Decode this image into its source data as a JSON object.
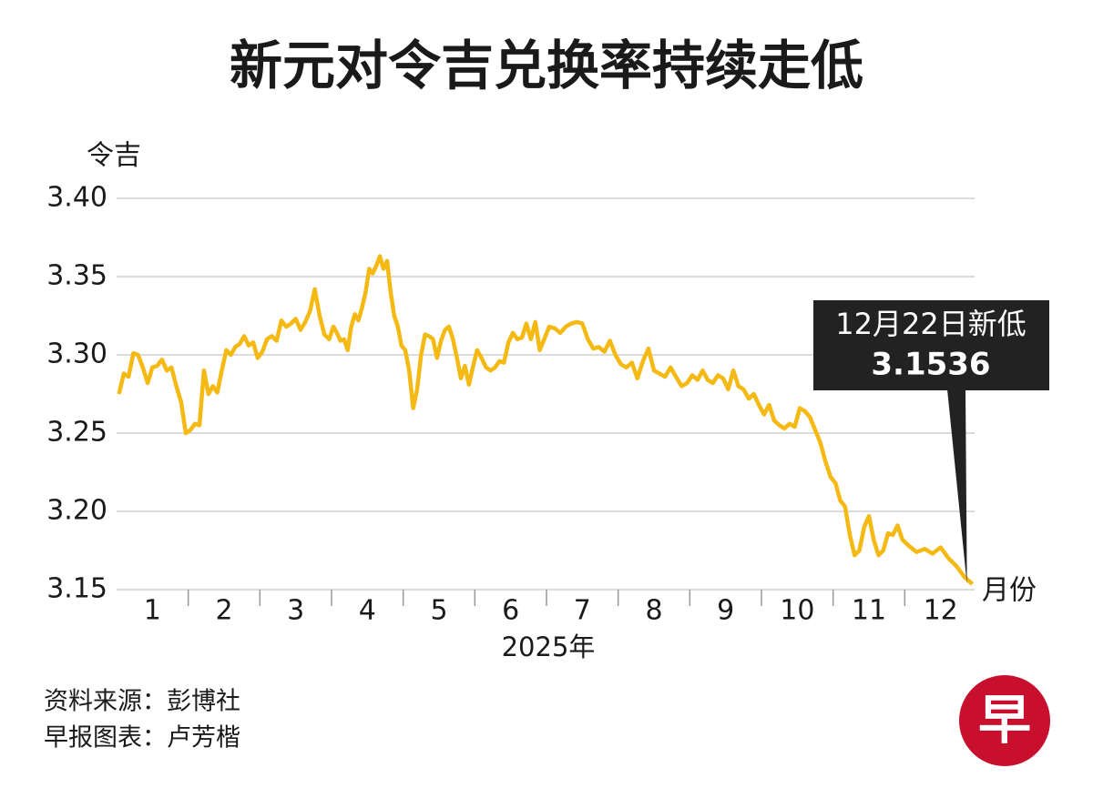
{
  "chart_data": {
    "type": "line",
    "title": "新元对令吉兑换率持续走低",
    "y_label": "令吉",
    "x_label": "月份",
    "x_sublabel": "2025年",
    "categories": [
      "1",
      "2",
      "3",
      "4",
      "5",
      "6",
      "7",
      "8",
      "9",
      "10",
      "11",
      "12"
    ],
    "series": [
      {
        "name": "新元对令吉",
        "color": "#f5b914",
        "values": [
          [
            3.275,
            3.288,
            3.286,
            3.301,
            3.3,
            3.292,
            3.282,
            3.292,
            3.293,
            3.297,
            3.29,
            3.292,
            3.28,
            3.27,
            3.25
          ],
          [
            3.252,
            3.256,
            3.255,
            3.29,
            3.275,
            3.28,
            3.276,
            3.29,
            3.303,
            3.3,
            3.305,
            3.307,
            3.312,
            3.306,
            3.308,
            3.298
          ],
          [
            3.302,
            3.31,
            3.312,
            3.309,
            3.322,
            3.318,
            3.32,
            3.323,
            3.316,
            3.321,
            3.328,
            3.342,
            3.325,
            3.313,
            3.31
          ],
          [
            3.318,
            3.314,
            3.309,
            3.31,
            3.303,
            3.318,
            3.326,
            3.322,
            3.33,
            3.34,
            3.355,
            3.352,
            3.357,
            3.363,
            3.355,
            3.36,
            3.34,
            3.325,
            3.318,
            3.306
          ],
          [
            3.303,
            3.29,
            3.266,
            3.278,
            3.3,
            3.313,
            3.312,
            3.31,
            3.298,
            3.309,
            3.316,
            3.318,
            3.31,
            3.298,
            3.285,
            3.293,
            3.281,
            3.292
          ],
          [
            3.303,
            3.298,
            3.292,
            3.29,
            3.292,
            3.296,
            3.295,
            3.308,
            3.314,
            3.31,
            3.311,
            3.32,
            3.31,
            3.321,
            3.303,
            3.31
          ],
          [
            3.318,
            3.317,
            3.314,
            3.318,
            3.32,
            3.321,
            3.32,
            3.31,
            3.304,
            3.305,
            3.302,
            3.309,
            3.3
          ],
          [
            3.294,
            3.292,
            3.295,
            3.285,
            3.296,
            3.304,
            3.29,
            3.288,
            3.286,
            3.292,
            3.286,
            3.28,
            3.282
          ],
          [
            3.287,
            3.284,
            3.29,
            3.284,
            3.282,
            3.287,
            3.285,
            3.278,
            3.29,
            3.28,
            3.278,
            3.272,
            3.275,
            3.268
          ],
          [
            3.262,
            3.268,
            3.258,
            3.255,
            3.253,
            3.256,
            3.254,
            3.266,
            3.264,
            3.26,
            3.252,
            3.244,
            3.232,
            3.222
          ],
          [
            3.218,
            3.207,
            3.203,
            3.185,
            3.172,
            3.175,
            3.19,
            3.197,
            3.182,
            3.172,
            3.175,
            3.186,
            3.185,
            3.191,
            3.182
          ],
          [
            3.178,
            3.174,
            3.176,
            3.173,
            3.177,
            3.17,
            3.165,
            3.158,
            3.1536
          ]
        ]
      }
    ],
    "annotation": "12月22日新低",
    "ylim": [
      3.15,
      3.4
    ],
    "yticks": [
      {
        "value": 3.4,
        "label": "3.40"
      },
      3.35,
      {
        "value": 3.3,
        "label": "3.30"
      },
      3.25,
      {
        "value": 3.2,
        "label": "3.20"
      },
      3.15
    ],
    "grid": true,
    "source": "资料来源：彭博社",
    "credit": "早报图表：卢芳楷",
    "logo": "早"
  }
}
